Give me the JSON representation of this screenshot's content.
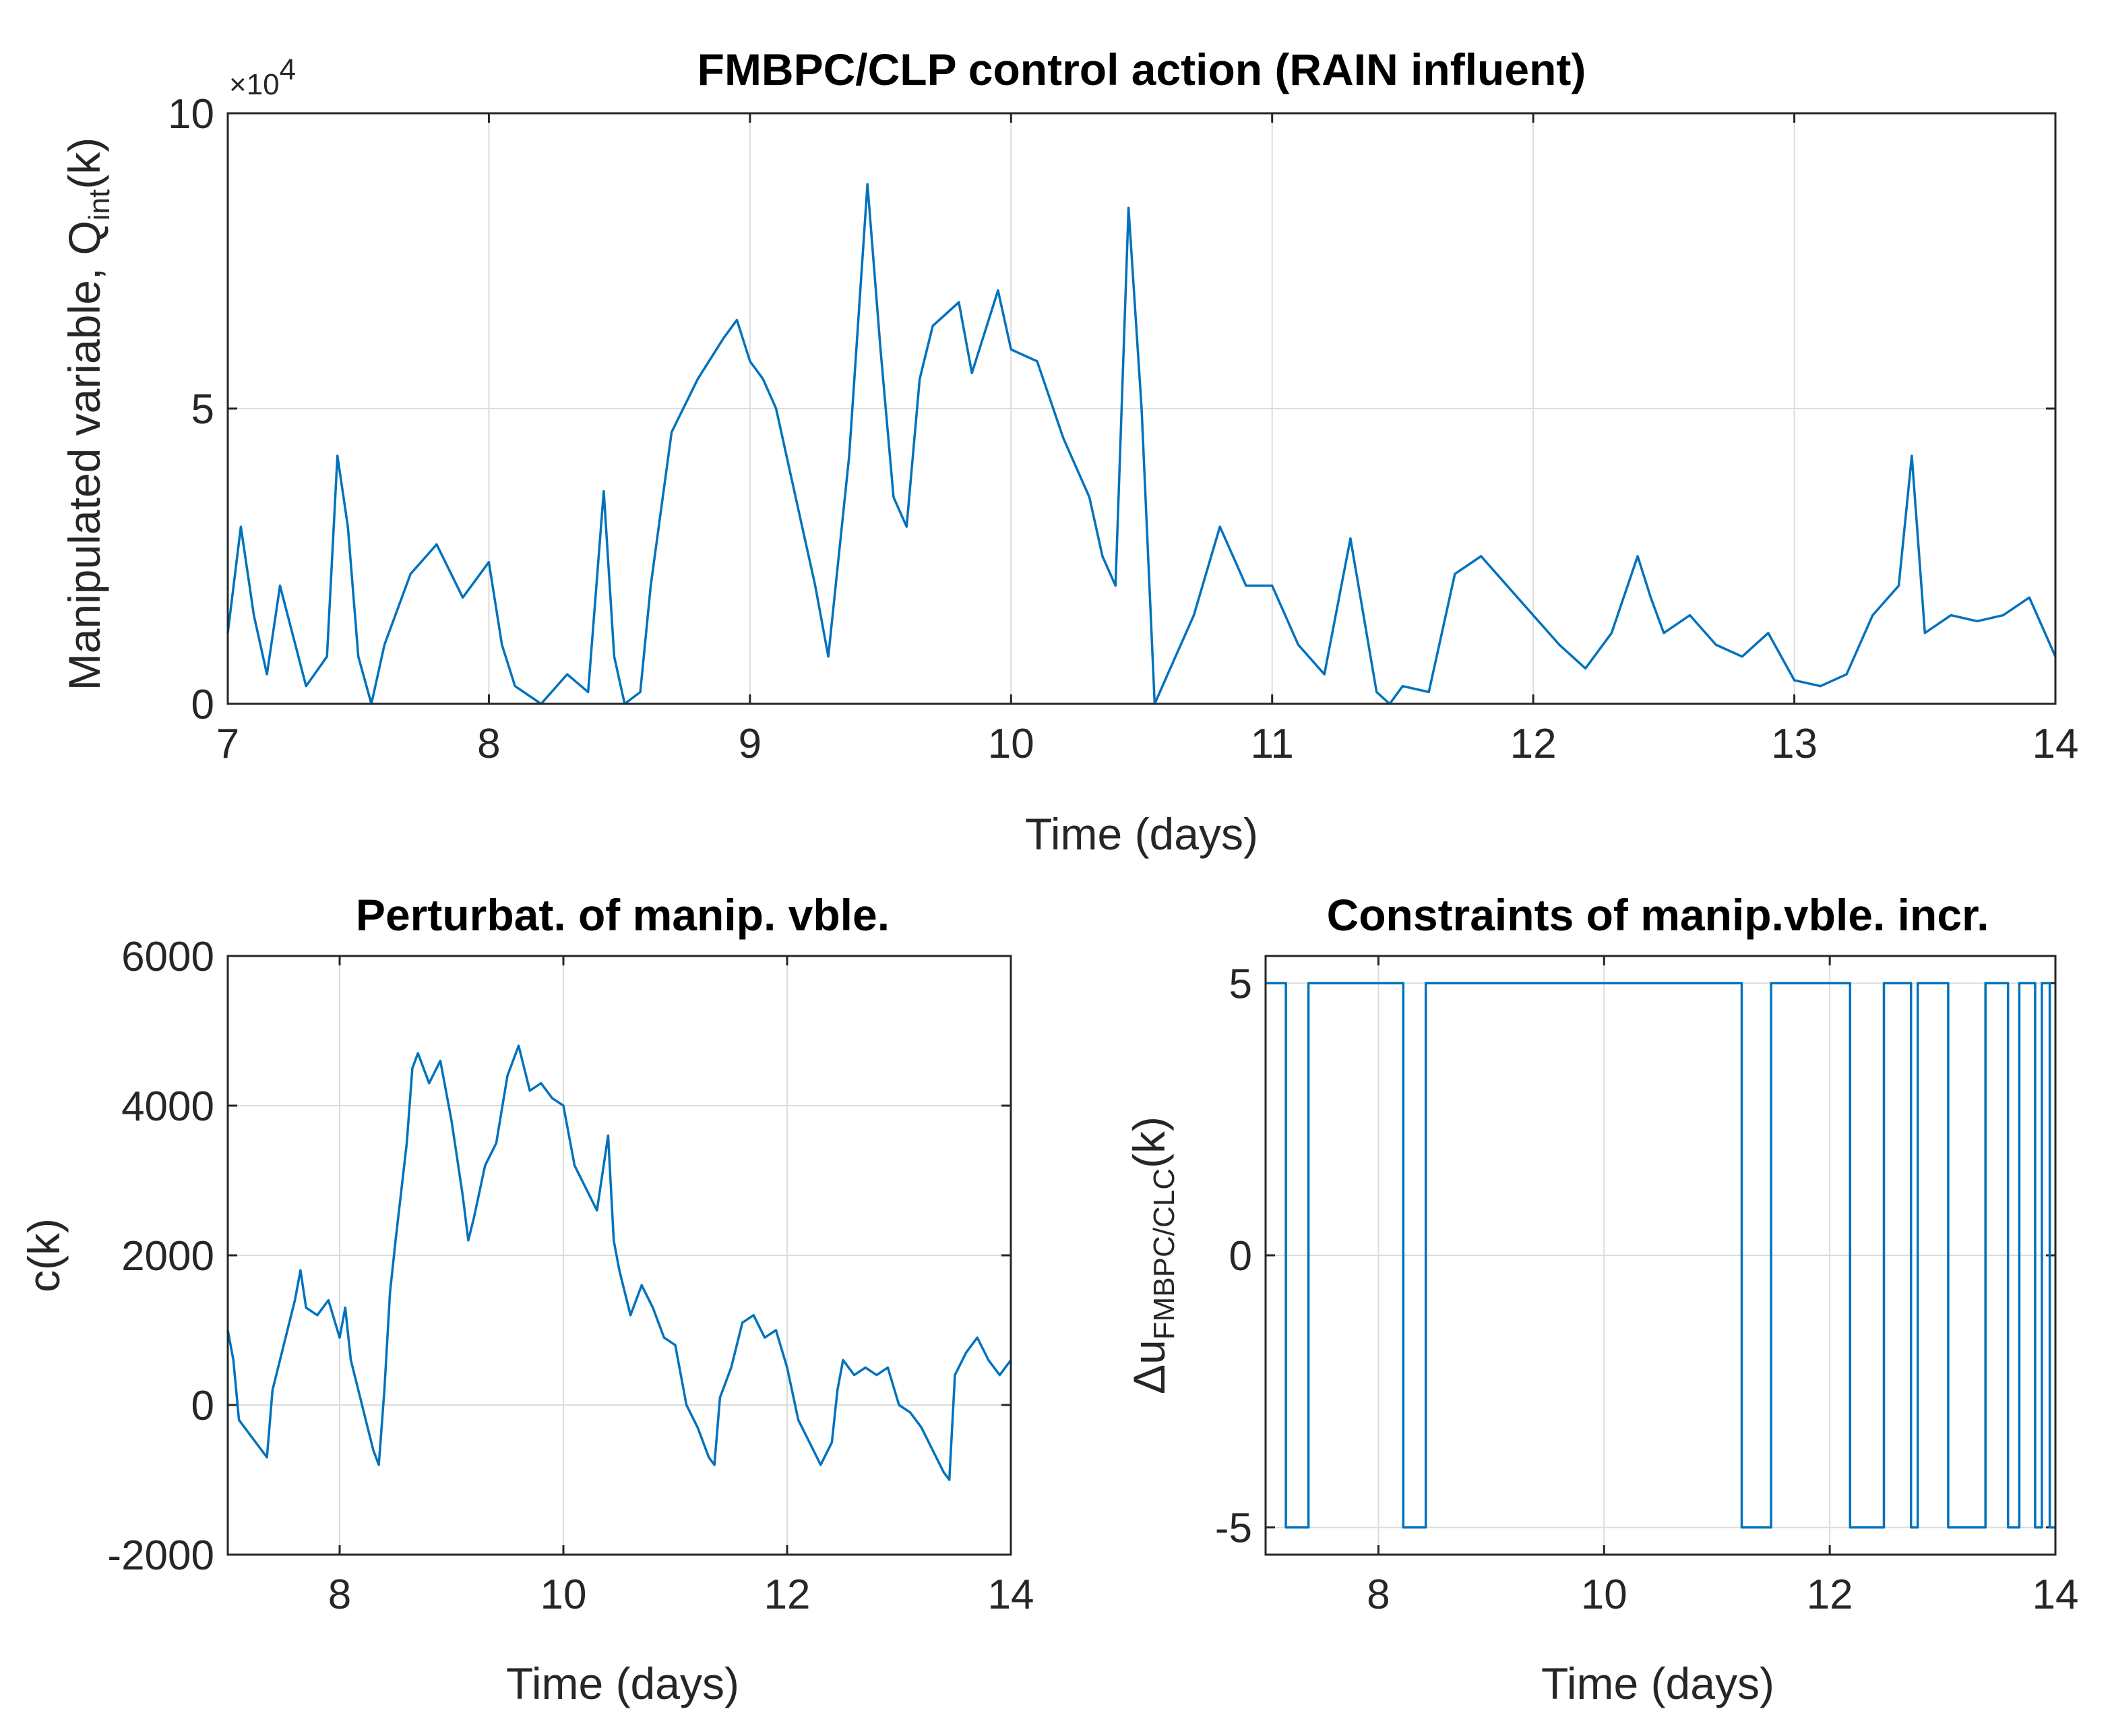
{
  "chart_data": [
    {
      "type": "line",
      "title": "FMBPC/CLP control action (RAIN influent)",
      "xlabel": "Time (days)",
      "ylabel_main": "Manipulated variable, Q",
      "ylabel_sub": "int",
      "ylabel_end": "(k)",
      "exponent_base": "×10",
      "exponent_power": "4",
      "xlim": [
        7,
        14
      ],
      "ylim": [
        0,
        100000
      ],
      "xticks": [
        7,
        8,
        9,
        10,
        11,
        12,
        13,
        14
      ],
      "xtick_labels": [
        "7",
        "8",
        "9",
        "10",
        "11",
        "12",
        "13",
        "14"
      ],
      "yticks": [
        0,
        50000,
        100000
      ],
      "ytick_labels": [
        "0",
        "5",
        "10"
      ],
      "grid": true,
      "series": [
        {
          "color": "#0072BD",
          "x": [
            7.0,
            7.05,
            7.1,
            7.15,
            7.2,
            7.3,
            7.38,
            7.42,
            7.46,
            7.5,
            7.55,
            7.6,
            7.7,
            7.8,
            7.9,
            8.0,
            8.05,
            8.1,
            8.2,
            8.3,
            8.38,
            8.44,
            8.48,
            8.52,
            8.58,
            8.62,
            8.7,
            8.8,
            8.9,
            8.95,
            9.0,
            9.05,
            9.1,
            9.2,
            9.25,
            9.3,
            9.38,
            9.45,
            9.5,
            9.55,
            9.6,
            9.65,
            9.7,
            9.8,
            9.85,
            9.9,
            9.95,
            10.0,
            10.1,
            10.2,
            10.3,
            10.35,
            10.4,
            10.45,
            10.5,
            10.55,
            10.6,
            10.7,
            10.8,
            10.9,
            11.0,
            11.1,
            11.2,
            11.3,
            11.4,
            11.45,
            11.5,
            11.6,
            11.7,
            11.8,
            11.9,
            12.0,
            12.1,
            12.2,
            12.3,
            12.4,
            12.45,
            12.5,
            12.6,
            12.7,
            12.8,
            12.9,
            13.0,
            13.1,
            13.2,
            13.3,
            13.4,
            13.45,
            13.5,
            13.6,
            13.7,
            13.8,
            13.9,
            14.0
          ],
          "y": [
            12000,
            30000,
            15000,
            5000,
            20000,
            3000,
            8000,
            42000,
            30000,
            8000,
            0,
            10000,
            22000,
            27000,
            18000,
            24000,
            10000,
            3000,
            0,
            5000,
            2000,
            36000,
            8000,
            0,
            2000,
            20000,
            46000,
            55000,
            62000,
            65000,
            58000,
            55000,
            50000,
            30000,
            20000,
            8000,
            42000,
            88000,
            60000,
            35000,
            30000,
            55000,
            64000,
            68000,
            56000,
            63000,
            70000,
            60000,
            58000,
            45000,
            35000,
            25000,
            20000,
            84000,
            50000,
            0,
            5000,
            15000,
            30000,
            20000,
            20000,
            10000,
            5000,
            28000,
            2000,
            0,
            3000,
            2000,
            22000,
            25000,
            20000,
            15000,
            10000,
            6000,
            12000,
            25000,
            18000,
            12000,
            15000,
            10000,
            8000,
            12000,
            4000,
            3000,
            5000,
            15000,
            20000,
            42000,
            12000,
            15000,
            14000,
            15000,
            18000,
            8000
          ]
        }
      ]
    },
    {
      "type": "line",
      "title": "Perturbat. of manip. vble.",
      "xlabel": "Time (days)",
      "ylabel": "c(k)",
      "xlim": [
        7,
        14
      ],
      "ylim": [
        -2000,
        6000
      ],
      "xticks": [
        8,
        10,
        12,
        14
      ],
      "xtick_labels": [
        "8",
        "10",
        "12",
        "14"
      ],
      "yticks": [
        -2000,
        0,
        2000,
        4000,
        6000
      ],
      "ytick_labels": [
        "-2000",
        "0",
        "2000",
        "4000",
        "6000"
      ],
      "grid": true,
      "series": [
        {
          "color": "#0072BD",
          "x": [
            7.0,
            7.05,
            7.1,
            7.2,
            7.3,
            7.35,
            7.4,
            7.5,
            7.6,
            7.65,
            7.7,
            7.8,
            7.9,
            8.0,
            8.05,
            8.1,
            8.2,
            8.3,
            8.35,
            8.4,
            8.45,
            8.5,
            8.6,
            8.65,
            8.7,
            8.8,
            8.9,
            8.95,
            9.0,
            9.1,
            9.15,
            9.2,
            9.3,
            9.4,
            9.5,
            9.6,
            9.65,
            9.7,
            9.8,
            9.9,
            10.0,
            10.1,
            10.2,
            10.3,
            10.4,
            10.45,
            10.5,
            10.6,
            10.7,
            10.8,
            10.9,
            11.0,
            11.1,
            11.2,
            11.3,
            11.35,
            11.4,
            11.5,
            11.6,
            11.7,
            11.8,
            11.9,
            12.0,
            12.1,
            12.2,
            12.3,
            12.4,
            12.45,
            12.5,
            12.6,
            12.7,
            12.8,
            12.9,
            13.0,
            13.1,
            13.2,
            13.3,
            13.4,
            13.45,
            13.5,
            13.6,
            13.7,
            13.8,
            13.9,
            14.0
          ],
          "y": [
            1000,
            600,
            -200,
            -400,
            -600,
            -700,
            200,
            800,
            1400,
            1800,
            1300,
            1200,
            1400,
            900,
            1300,
            600,
            0,
            -600,
            -800,
            200,
            1500,
            2200,
            3500,
            4500,
            4700,
            4300,
            4600,
            4200,
            3800,
            2800,
            2200,
            2500,
            3200,
            3500,
            4400,
            4800,
            4500,
            4200,
            4300,
            4100,
            4000,
            3200,
            2900,
            2600,
            3600,
            2200,
            1800,
            1200,
            1600,
            1300,
            900,
            800,
            0,
            -300,
            -700,
            -800,
            100,
            500,
            1100,
            1200,
            900,
            1000,
            500,
            -200,
            -500,
            -800,
            -500,
            200,
            600,
            400,
            500,
            400,
            500,
            0,
            -100,
            -300,
            -600,
            -900,
            -1000,
            400,
            700,
            900,
            600,
            400,
            600
          ]
        }
      ]
    },
    {
      "type": "line",
      "title": "Constraints of manip.vble. incr.",
      "xlabel": "Time (days)",
      "ylabel_main": "Δu",
      "ylabel_sub": "FMBPC/CLC",
      "ylabel_end": "(k)",
      "xlim": [
        7,
        14
      ],
      "ylim": [
        -5.5,
        5.5
      ],
      "xticks": [
        8,
        10,
        12,
        14
      ],
      "xtick_labels": [
        "8",
        "10",
        "12",
        "14"
      ],
      "yticks": [
        -5,
        0,
        5
      ],
      "ytick_labels": [
        "-5",
        "0",
        "5"
      ],
      "grid": true,
      "series": [
        {
          "color": "#0072BD",
          "x": [
            7.0,
            7.18,
            7.18,
            7.38,
            7.38,
            8.22,
            8.22,
            8.42,
            8.42,
            11.22,
            11.22,
            11.28,
            11.28,
            11.32,
            11.32,
            11.48,
            11.48,
            12.18,
            12.18,
            12.48,
            12.48,
            12.72,
            12.72,
            12.78,
            12.78,
            13.05,
            13.05,
            13.38,
            13.38,
            13.58,
            13.58,
            13.68,
            13.68,
            13.82,
            13.82,
            13.88,
            13.88,
            13.95,
            13.95,
            14.0
          ],
          "y": [
            5,
            5,
            -5,
            -5,
            5,
            5,
            -5,
            -5,
            5,
            5,
            -5,
            -5,
            -5,
            -5,
            -5,
            -5,
            5,
            5,
            -5,
            -5,
            5,
            5,
            -5,
            -5,
            5,
            5,
            -5,
            -5,
            5,
            5,
            -5,
            -5,
            5,
            5,
            -5,
            -5,
            5,
            5,
            -5,
            -5
          ]
        }
      ]
    }
  ]
}
